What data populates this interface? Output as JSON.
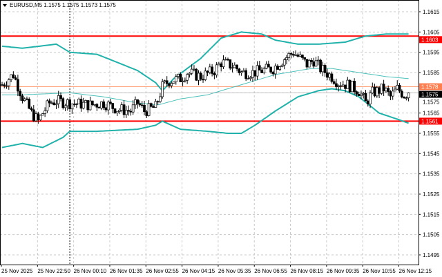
{
  "header": {
    "symbol_line": "EURUSD,M5  1.1575 1.1575 1.1573 1.1575"
  },
  "chart_data": {
    "type": "candlestick",
    "symbol": "EURUSD",
    "timeframe": "M5",
    "ohlc_header": [
      1.1575,
      1.1575,
      1.1573,
      1.1575
    ],
    "y_ticks": [
      "1.1615",
      "1.1605",
      "1.1595",
      "1.1585",
      "1.1575",
      "1.1565",
      "1.1555",
      "1.1545",
      "1.1535",
      "1.1525",
      "1.1515",
      "1.1505",
      "1.1495"
    ],
    "ylim": [
      1.14935,
      1.16207
    ],
    "x_ticks": [
      "25 Nov 2025",
      "25 Nov 22:50",
      "26 Nov 00:10",
      "26 Nov 01:35",
      "26 Nov 02:55",
      "26 Nov 04:15",
      "26 Nov 05:35",
      "26 Nov 06:55",
      "26 Nov 08:15",
      "26 Nov 09:35",
      "26 Nov 10:55",
      "26 Nov 12:15"
    ],
    "bars_per_tick": 16,
    "grid": true,
    "close_path": [
      [
        0,
        1.1579
      ],
      [
        5,
        1.1584
      ],
      [
        9,
        1.1573
      ],
      [
        13,
        1.1565
      ],
      [
        16,
        1.1561
      ],
      [
        18,
        1.1565
      ],
      [
        21,
        1.157
      ],
      [
        24,
        1.1571
      ],
      [
        30,
        1.157
      ],
      [
        39,
        1.1569
      ],
      [
        45,
        1.157
      ],
      [
        51,
        1.1567
      ],
      [
        57,
        1.1566
      ],
      [
        60,
        1.157
      ],
      [
        63,
        1.1566
      ],
      [
        68,
        1.1568
      ],
      [
        71,
        1.1578
      ],
      [
        74,
        1.1581
      ],
      [
        79,
        1.1582
      ],
      [
        82,
        1.1585
      ],
      [
        88,
        1.1583
      ],
      [
        94,
        1.1586
      ],
      [
        97,
        1.159
      ],
      [
        103,
        1.1588
      ],
      [
        106,
        1.1585
      ],
      [
        111,
        1.1585
      ],
      [
        115,
        1.1586
      ],
      [
        120,
        1.1587
      ],
      [
        124,
        1.1591
      ],
      [
        129,
        1.1595
      ],
      [
        132,
        1.1592
      ],
      [
        135,
        1.1589
      ],
      [
        138,
        1.1591
      ],
      [
        141,
        1.1587
      ],
      [
        146,
        1.1583
      ],
      [
        149,
        1.158
      ],
      [
        153,
        1.1579
      ],
      [
        158,
        1.1576
      ],
      [
        161,
        1.157
      ],
      [
        164,
        1.1575
      ],
      [
        169,
        1.1577
      ],
      [
        172,
        1.1573
      ],
      [
        175,
        1.1577
      ],
      [
        178,
        1.1574
      ],
      [
        180,
        1.1575
      ]
    ],
    "bollinger": {
      "color": "#20b2aa",
      "upper": [
        [
          0,
          1.1598
        ],
        [
          9,
          1.1597
        ],
        [
          24,
          1.1599
        ],
        [
          30,
          1.1595
        ],
        [
          42,
          1.1594
        ],
        [
          60,
          1.1586
        ],
        [
          68,
          1.158
        ],
        [
          71,
          1.1576
        ],
        [
          76,
          1.1582
        ],
        [
          88,
          1.1592
        ],
        [
          97,
          1.1602
        ],
        [
          106,
          1.1605
        ],
        [
          115,
          1.1604
        ],
        [
          121,
          1.1601
        ],
        [
          131,
          1.1599
        ],
        [
          140,
          1.1599
        ],
        [
          152,
          1.16
        ],
        [
          161,
          1.1603
        ],
        [
          170,
          1.1604
        ],
        [
          180,
          1.1604
        ]
      ],
      "middle": [
        [
          0,
          1.1574
        ],
        [
          9,
          1.1574
        ],
        [
          30,
          1.1575
        ],
        [
          45,
          1.1573
        ],
        [
          60,
          1.157
        ],
        [
          69,
          1.1569
        ],
        [
          79,
          1.1572
        ],
        [
          91,
          1.1574
        ],
        [
          106,
          1.1579
        ],
        [
          121,
          1.1584
        ],
        [
          137,
          1.1587
        ],
        [
          146,
          1.1587
        ],
        [
          158,
          1.1585
        ],
        [
          170,
          1.1583
        ],
        [
          180,
          1.1582
        ]
      ],
      "lower": [
        [
          0,
          1.1548
        ],
        [
          9,
          1.155
        ],
        [
          18,
          1.1548
        ],
        [
          27,
          1.1553
        ],
        [
          30,
          1.1556
        ],
        [
          42,
          1.1556
        ],
        [
          60,
          1.1557
        ],
        [
          68,
          1.1559
        ],
        [
          71,
          1.1561
        ],
        [
          79,
          1.1557
        ],
        [
          91,
          1.1556
        ],
        [
          100,
          1.1555
        ],
        [
          106,
          1.1555
        ],
        [
          112,
          1.1559
        ],
        [
          121,
          1.1566
        ],
        [
          131,
          1.1573
        ],
        [
          140,
          1.1576
        ],
        [
          146,
          1.1577
        ],
        [
          152,
          1.1576
        ],
        [
          158,
          1.1573
        ],
        [
          167,
          1.1565
        ],
        [
          175,
          1.1562
        ],
        [
          180,
          1.156
        ]
      ]
    },
    "levels": [
      {
        "price": "1.1603",
        "color": "#ff0000",
        "badge_text": "#ffffff"
      },
      {
        "price": "1.1578",
        "color": "#ff7f50",
        "badge_text": "#ffffff",
        "line": "#ffa07a"
      },
      {
        "price": "1.1575",
        "color": "#000000",
        "badge_text": "#ffffff",
        "line": "#c0c0c0"
      },
      {
        "price": "1.1561",
        "color": "#ff0000",
        "badge_text": "#ffffff"
      }
    ],
    "period_separator_bar": 30
  }
}
